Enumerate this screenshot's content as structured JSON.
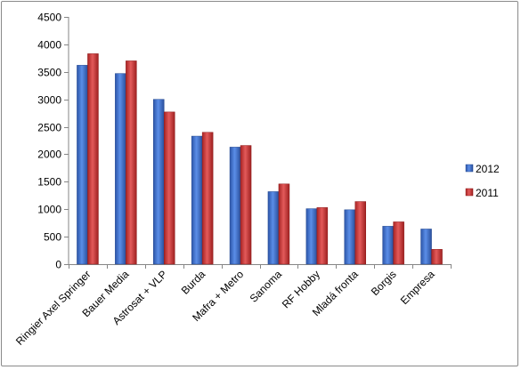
{
  "chart_data": {
    "type": "bar",
    "title": "",
    "xlabel": "",
    "ylabel": "",
    "ylim": [
      0,
      4500
    ],
    "yticks": [
      0,
      500,
      1000,
      1500,
      2000,
      2500,
      3000,
      3500,
      4000,
      4500
    ],
    "categories": [
      "Ringier Axel Springer",
      "Bauer Media",
      "Astrosat + VLP",
      "Burda",
      "Mafra + Metro",
      "Sanoma",
      "RF Hobby",
      "Mladá fronta",
      "Borgis",
      "Empresa"
    ],
    "series": [
      {
        "name": "2012",
        "color": "#3b6fd0",
        "values": [
          3620,
          3470,
          3000,
          2330,
          2130,
          1320,
          1010,
          990,
          690,
          640
        ]
      },
      {
        "name": "2011",
        "color": "#d23a3a",
        "values": [
          3830,
          3700,
          2770,
          2400,
          2160,
          1460,
          1030,
          1140,
          770,
          270
        ]
      }
    ],
    "grid": false,
    "legend_position": "right"
  }
}
